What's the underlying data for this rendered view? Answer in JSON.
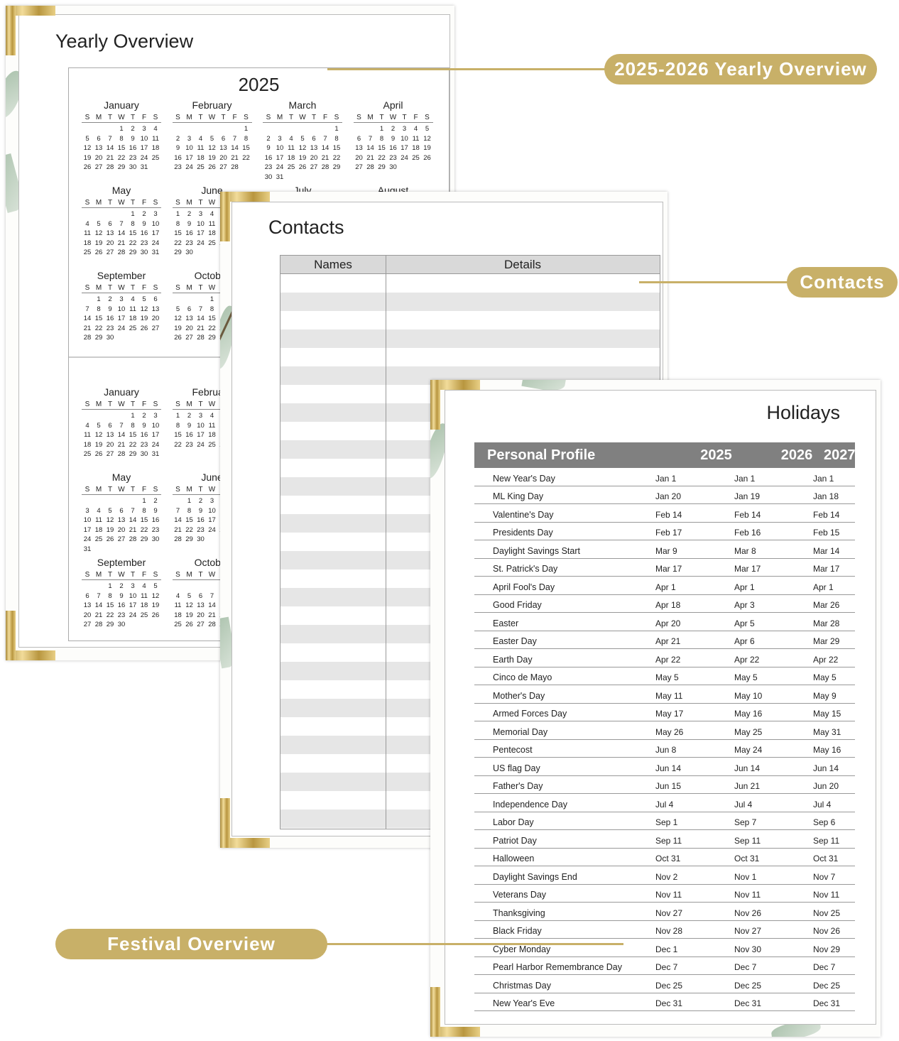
{
  "yearly": {
    "title": "Yearly Overview",
    "sections": [
      {
        "year": "2025",
        "months": [
          {
            "name": "January",
            "first_weekday": 3,
            "days": 31
          },
          {
            "name": "February",
            "first_weekday": 6,
            "days": 28
          },
          {
            "name": "March",
            "first_weekday": 6,
            "days": 31
          },
          {
            "name": "April",
            "first_weekday": 2,
            "days": 30
          },
          {
            "name": "May",
            "first_weekday": 4,
            "days": 31
          },
          {
            "name": "June",
            "first_weekday": 0,
            "days": 30
          },
          {
            "name": "July"
          },
          {
            "name": "August"
          },
          {
            "name": "September",
            "first_weekday": 1,
            "days": 30
          },
          {
            "name": "October",
            "first_weekday": 3,
            "days": 31
          }
        ]
      },
      {
        "year": "",
        "months": [
          {
            "name": "January",
            "first_weekday": 4,
            "days": 31
          },
          {
            "name": "February",
            "first_weekday": 0,
            "days": 28
          },
          {
            "skip": true
          },
          {
            "skip": true
          },
          {
            "name": "May",
            "first_weekday": 5,
            "days": 31
          },
          {
            "name": "June",
            "first_weekday": 1,
            "days": 30
          },
          {
            "skip": true
          },
          {
            "skip": true
          },
          {
            "name": "September",
            "first_weekday": 2,
            "days": 30
          },
          {
            "name": "October",
            "first_weekday": 4,
            "days": 31
          }
        ]
      }
    ],
    "weekdays": [
      "S",
      "M",
      "T",
      "W",
      "T",
      "F",
      "S"
    ]
  },
  "contacts": {
    "title": "Contacts",
    "columns": [
      "Names",
      "Details"
    ]
  },
  "holidays": {
    "title": "Holidays",
    "columns": [
      "Personal Profile",
      "2025",
      "2026",
      "2027"
    ],
    "rows": [
      [
        "New Year's Day",
        "Jan 1",
        "Jan 1",
        "Jan 1"
      ],
      [
        "ML King Day",
        "Jan 20",
        "Jan 19",
        "Jan 18"
      ],
      [
        "Valentine's Day",
        "Feb 14",
        "Feb 14",
        "Feb 14"
      ],
      [
        "Presidents Day",
        "Feb 17",
        "Feb 16",
        "Feb 15"
      ],
      [
        "Daylight Savings Start",
        "Mar 9",
        "Mar 8",
        "Mar 14"
      ],
      [
        "St. Patrick's Day",
        "Mar 17",
        "Mar 17",
        "Mar 17"
      ],
      [
        "April Fool's Day",
        "Apr 1",
        "Apr 1",
        "Apr 1"
      ],
      [
        "Good Friday",
        "Apr 18",
        "Apr 3",
        "Mar 26"
      ],
      [
        "Easter",
        "Apr 20",
        "Apr 5",
        "Mar 28"
      ],
      [
        "Easter Day",
        "Apr 21",
        "Apr 6",
        "Mar 29"
      ],
      [
        "Earth Day",
        "Apr 22",
        "Apr 22",
        "Apr 22"
      ],
      [
        "Cinco de Mayo",
        "May 5",
        "May 5",
        "May 5"
      ],
      [
        "Mother's Day",
        "May 11",
        "May 10",
        "May 9"
      ],
      [
        "Armed Forces Day",
        "May 17",
        "May 16",
        "May 15"
      ],
      [
        "Memorial Day",
        "May 26",
        "May 25",
        "May 31"
      ],
      [
        "Pentecost",
        "Jun 8",
        "May 24",
        "May 16"
      ],
      [
        "US flag Day",
        "Jun 14",
        "Jun 14",
        "Jun 14"
      ],
      [
        "Father's Day",
        "Jun 15",
        "Jun 21",
        "Jun 20"
      ],
      [
        "Independence Day",
        "Jul 4",
        "Jul 4",
        "Jul 4"
      ],
      [
        "Labor Day",
        "Sep 1",
        "Sep 7",
        "Sep 6"
      ],
      [
        "Patriot Day",
        "Sep 11",
        "Sep 11",
        "Sep 11"
      ],
      [
        "Halloween",
        "Oct 31",
        "Oct 31",
        "Oct 31"
      ],
      [
        "Daylight Savings End",
        "Nov 2",
        "Nov 1",
        "Nov 7"
      ],
      [
        "Veterans Day",
        "Nov 11",
        "Nov 11",
        "Nov 11"
      ],
      [
        "Thanksgiving",
        "Nov 27",
        "Nov 26",
        "Nov 25"
      ],
      [
        "Black Friday",
        "Nov 28",
        "Nov 27",
        "Nov 26"
      ],
      [
        "Cyber Monday",
        "Dec 1",
        "Nov 30",
        "Nov 29"
      ],
      [
        "Pearl Harbor Remembrance Day",
        "Dec 7",
        "Dec 7",
        "Dec 7"
      ],
      [
        "Christmas Day",
        "Dec 25",
        "Dec 25",
        "Dec 25"
      ],
      [
        "New Year's Eve",
        "Dec 31",
        "Dec 31",
        "Dec 31"
      ]
    ]
  },
  "labels": {
    "yearly": "2025-2026 Yearly Overview",
    "contacts": "Contacts",
    "festival": "Festival Overview"
  },
  "colors": {
    "gold": "#c8b068",
    "header_gray": "#808080",
    "row_gray": "#e6e6e6"
  }
}
